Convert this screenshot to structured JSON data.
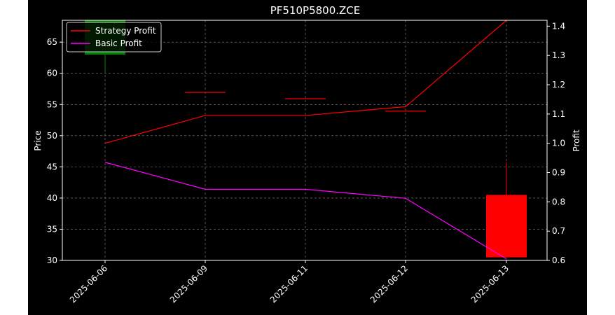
{
  "chart_data": {
    "type": "candlestick+line",
    "title": "PF510P5800.ZCE",
    "xlabel": "",
    "ylabel_left": "Price",
    "ylabel_right": "Profit",
    "categories": [
      "2025-06-06",
      "2025-06-09",
      "2025-06-11",
      "2025-06-12",
      "2025-06-13"
    ],
    "ylim_left": [
      30,
      68.5
    ],
    "ylim_right": [
      0.6,
      1.42
    ],
    "yticks_left": [
      30,
      35,
      40,
      45,
      50,
      55,
      60,
      65
    ],
    "yticks_right": [
      0.6,
      0.7,
      0.8,
      0.9,
      1.0,
      1.1,
      1.2,
      1.3,
      1.4
    ],
    "ytick_labels_right": [
      "0.6",
      "0.7",
      "0.8",
      "0.9",
      "1.0",
      "1.1",
      "1.2",
      "1.3",
      "1.4"
    ],
    "grid": true,
    "legend_position": "top-left",
    "candles": [
      {
        "date": "2025-06-06",
        "open": 63,
        "close": 68.5,
        "high": 68.5,
        "low": 60.3,
        "color": "#008000"
      },
      {
        "date": "2025-06-09",
        "open": 57,
        "close": 57,
        "high": 57,
        "low": 57,
        "color": "#ff0000"
      },
      {
        "date": "2025-06-11",
        "open": 56,
        "close": 56,
        "high": 56,
        "low": 56,
        "color": "#ff0000"
      },
      {
        "date": "2025-06-12",
        "open": 54,
        "close": 54,
        "high": 54,
        "low": 54,
        "color": "#ff0000"
      },
      {
        "date": "2025-06-13",
        "open": 40.5,
        "close": 30.5,
        "high": 45.7,
        "low": 30.5,
        "color": "#ff0000"
      }
    ],
    "series": [
      {
        "name": "Strategy Profit",
        "color": "#ff0000",
        "values": [
          1.0,
          1.095,
          1.095,
          1.125,
          1.42
        ]
      },
      {
        "name": "Basic Profit",
        "color": "#ff00ff",
        "values": [
          0.935,
          0.843,
          0.843,
          0.812,
          0.605
        ]
      }
    ]
  }
}
